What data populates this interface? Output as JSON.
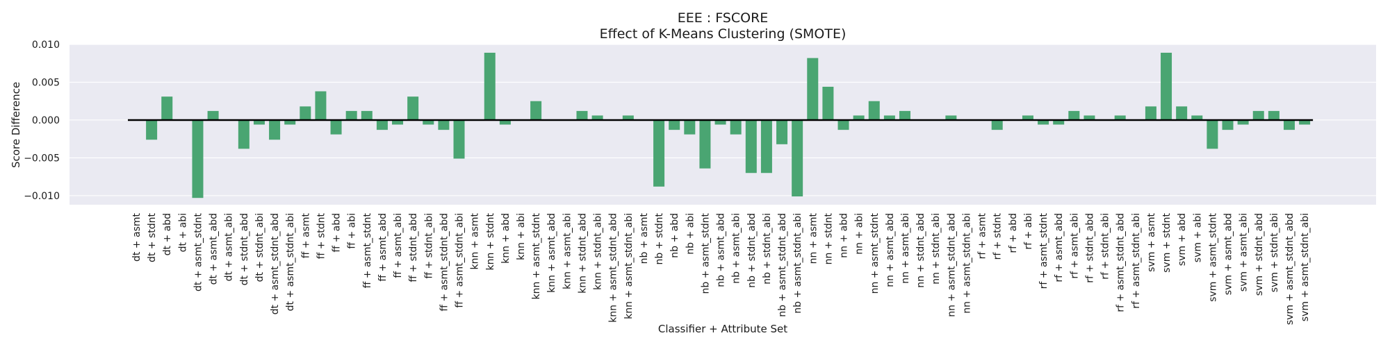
{
  "chart_data": {
    "type": "bar",
    "title": "EEE : FSCORE",
    "subtitle": "Effect of K-Means Clustering (SMOTE)",
    "xlabel": "Classifier + Attribute Set",
    "ylabel": "Score Difference",
    "ylim": [
      -0.0112,
      0.01
    ],
    "yticks": [
      0.01,
      0.005,
      0.0,
      -0.005,
      -0.01
    ],
    "ytick_labels": [
      "0.010",
      "0.005",
      "0.000",
      "−0.005",
      "−0.010"
    ],
    "grid": true,
    "bar_color": "#4aa572",
    "background_color": "#eaeaf2",
    "zero_line_color": "#000000",
    "categories": [
      "dt + asmt",
      "dt + stdnt",
      "dt + abd",
      "dt + abi",
      "dt + asmt_stdnt",
      "dt + asmt_abd",
      "dt + asmt_abi",
      "dt + stdnt_abd",
      "dt + stdnt_abi",
      "dt + asmt_stdnt_abd",
      "dt + asmt_stdnt_abi",
      "ff + asmt",
      "ff + stdnt",
      "ff + abd",
      "ff + abi",
      "ff + asmt_stdnt",
      "ff + asmt_abd",
      "ff + asmt_abi",
      "ff + stdnt_abd",
      "ff + stdnt_abi",
      "ff + asmt_stdnt_abd",
      "ff + asmt_stdnt_abi",
      "knn + asmt",
      "knn + stdnt",
      "knn + abd",
      "knn + abi",
      "knn + asmt_stdnt",
      "knn + asmt_abd",
      "knn + asmt_abi",
      "knn + stdnt_abd",
      "knn + stdnt_abi",
      "knn + asmt_stdnt_abd",
      "knn + asmt_stdnt_abi",
      "nb + asmt",
      "nb + stdnt",
      "nb + abd",
      "nb + abi",
      "nb + asmt_stdnt",
      "nb + asmt_abd",
      "nb + asmt_abi",
      "nb + stdnt_abd",
      "nb + stdnt_abi",
      "nb + asmt_stdnt_abd",
      "nb + asmt_stdnt_abi",
      "nn + asmt",
      "nn + stdnt",
      "nn + abd",
      "nn + abi",
      "nn + asmt_stdnt",
      "nn + asmt_abd",
      "nn + asmt_abi",
      "nn + stdnt_abd",
      "nn + stdnt_abi",
      "nn + asmt_stdnt_abd",
      "nn + asmt_stdnt_abi",
      "rf + asmt",
      "rf + stdnt",
      "rf + abd",
      "rf + abi",
      "rf + asmt_stdnt",
      "rf + asmt_abd",
      "rf + asmt_abi",
      "rf + stdnt_abd",
      "rf + stdnt_abi",
      "rf + asmt_stdnt_abd",
      "rf + asmt_stdnt_abi",
      "svm + asmt",
      "svm + stdnt",
      "svm + abd",
      "svm + abi",
      "svm + asmt_stdnt",
      "svm + asmt_abd",
      "svm + asmt_abi",
      "svm + stdnt_abd",
      "svm + stdnt_abi",
      "svm + asmt_stdnt_abd",
      "svm + asmt_stdnt_abi"
    ],
    "values": [
      0.0,
      -0.0026,
      0.0031,
      0.0,
      -0.0103,
      0.0012,
      0.0,
      -0.0038,
      -0.0006,
      -0.0026,
      -0.0006,
      0.0018,
      0.0038,
      -0.0019,
      0.0012,
      0.0012,
      -0.0013,
      -0.0006,
      0.0031,
      -0.0006,
      -0.0013,
      -0.0051,
      0.0,
      0.0089,
      -0.0006,
      0.0,
      0.0025,
      0.0,
      0.0,
      0.0012,
      0.0006,
      0.0,
      0.0006,
      0.0,
      -0.0088,
      -0.0013,
      -0.0019,
      -0.0064,
      -0.0006,
      -0.0019,
      -0.007,
      -0.007,
      -0.0032,
      -0.0101,
      0.0082,
      0.0044,
      -0.0013,
      0.0006,
      0.0025,
      0.0006,
      0.0012,
      0.0,
      0.0,
      0.0006,
      0.0,
      0.0,
      -0.0013,
      0.0,
      0.0006,
      -0.0006,
      -0.0006,
      0.0012,
      0.0006,
      0.0,
      0.0006,
      0.0,
      0.0018,
      0.0089,
      0.0018,
      0.0006,
      -0.0038,
      -0.0013,
      -0.0006,
      0.0012,
      0.0012,
      -0.0013,
      -0.0006
    ]
  }
}
